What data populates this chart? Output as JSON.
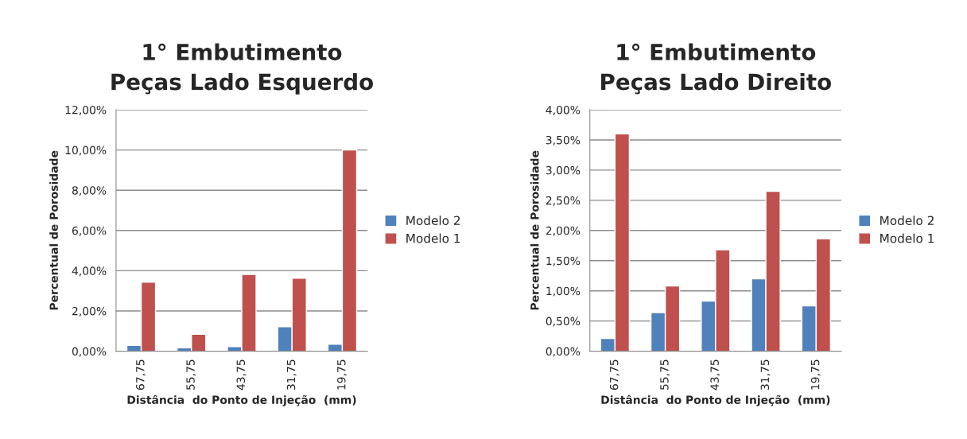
{
  "chart_data": [
    {
      "type": "bar",
      "title": "1° Embutimento\nPeças Lado Esquerdo",
      "xlabel": "Distância  do Ponto de Injeção  (mm)",
      "ylabel": "Percentual de Porosidade",
      "categories": [
        "67,75",
        "55,75",
        "43,75",
        "31,75",
        "19,75"
      ],
      "series": [
        {
          "name": "Modelo 2",
          "color": "#4f81bd",
          "values": [
            0.29,
            0.17,
            0.23,
            1.22,
            0.35
          ]
        },
        {
          "name": "Modelo 1",
          "color": "#c0504d",
          "values": [
            3.43,
            0.84,
            3.82,
            3.63,
            10.0
          ]
        }
      ],
      "ylim": [
        0,
        12
      ],
      "yticks": [
        {
          "value": 0,
          "label": "0,00%"
        },
        {
          "value": 2,
          "label": "2,00%"
        },
        {
          "value": 4,
          "label": "4,00%"
        },
        {
          "value": 6,
          "label": "6,00%"
        },
        {
          "value": 8,
          "label": "8,00%"
        },
        {
          "value": 10,
          "label": "10,00%"
        },
        {
          "value": 12,
          "label": "12,00%"
        }
      ],
      "grid": "y",
      "legend": "right"
    },
    {
      "type": "bar",
      "title": "1° Embutimento\nPeças Lado Direito",
      "xlabel": "Distância  do Ponto de Injeção  (mm)",
      "ylabel": "Percentual de Porosidade",
      "categories": [
        "67,75",
        "55,75",
        "43,75",
        "31,75",
        "19,75"
      ],
      "series": [
        {
          "name": "Modelo 2",
          "color": "#4f81bd",
          "values": [
            0.21,
            0.64,
            0.83,
            1.2,
            0.75
          ]
        },
        {
          "name": "Modelo 1",
          "color": "#c0504d",
          "values": [
            3.6,
            1.08,
            1.68,
            2.65,
            1.86
          ]
        }
      ],
      "ylim": [
        0,
        4
      ],
      "yticks": [
        {
          "value": 0,
          "label": "0,00%"
        },
        {
          "value": 0.5,
          "label": "0,50%"
        },
        {
          "value": 1,
          "label": "1,00%"
        },
        {
          "value": 1.5,
          "label": "1,50%"
        },
        {
          "value": 2,
          "label": "2,00%"
        },
        {
          "value": 2.5,
          "label": "2,50%"
        },
        {
          "value": 3,
          "label": "3,00%"
        },
        {
          "value": 3.5,
          "label": "3,50%"
        },
        {
          "value": 4,
          "label": "4,00%"
        }
      ],
      "grid": "y",
      "legend": "right"
    }
  ]
}
